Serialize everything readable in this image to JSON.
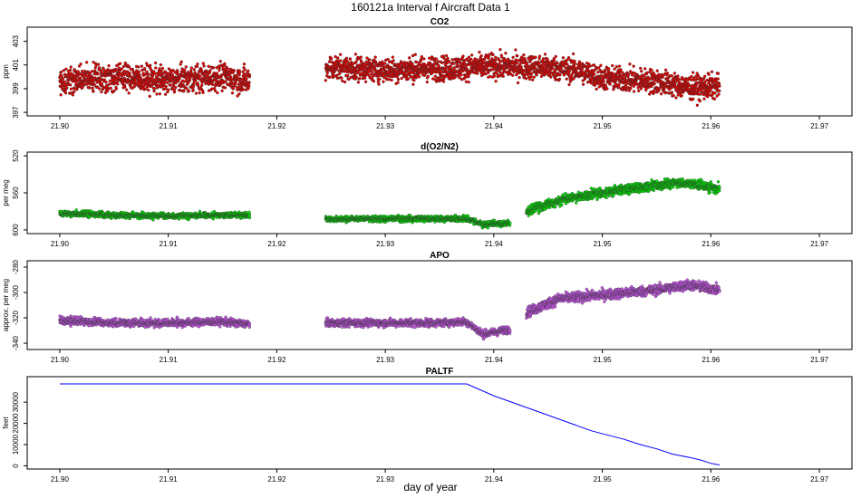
{
  "figure": {
    "title": "160121a   Interval f Aircraft Data 1",
    "xlabel": "day of year"
  },
  "chart_data": [
    {
      "type": "scatter",
      "title": "CO2",
      "ylabel": "ppm",
      "xlim": [
        21.897,
        21.973
      ],
      "ylim": [
        396.7,
        404.2
      ],
      "yticks": [
        397,
        399,
        401,
        403
      ],
      "xticks": [
        21.9,
        21.91,
        21.92,
        21.93,
        21.94,
        21.95,
        21.96,
        21.97
      ],
      "xtick_labels": [
        "21.90",
        "21.91",
        "21.92",
        "21.93",
        "21.94",
        "21.95",
        "21.96",
        "21.97"
      ],
      "color": "#e00000",
      "segments": [
        {
          "x_start": 21.9,
          "x_end": 21.9175,
          "mean_points": [
            [
              21.9,
              399.6
            ],
            [
              21.905,
              400.0
            ],
            [
              21.91,
              399.7
            ],
            [
              21.915,
              400.0
            ],
            [
              21.9175,
              399.6
            ]
          ],
          "noise": 1.1
        },
        {
          "x_start": 21.9245,
          "x_end": 21.9608,
          "mean_points": [
            [
              21.9245,
              400.8
            ],
            [
              21.93,
              400.6
            ],
            [
              21.935,
              400.7
            ],
            [
              21.94,
              400.9
            ],
            [
              21.945,
              400.8
            ],
            [
              21.948,
              400.5
            ],
            [
              21.95,
              399.9
            ],
            [
              21.955,
              399.6
            ],
            [
              21.958,
              399.1
            ],
            [
              21.9608,
              399.2
            ]
          ],
          "noise": 1.0
        }
      ]
    },
    {
      "type": "scatter",
      "title": "d(O2/N2)",
      "ylabel": "per meg",
      "xlim": [
        21.897,
        21.973
      ],
      "ylim": [
        604,
        516
      ],
      "yticks": [
        520,
        560,
        600
      ],
      "xticks": [
        21.9,
        21.91,
        21.92,
        21.93,
        21.94,
        21.95,
        21.96,
        21.97
      ],
      "xtick_labels": [
        "21.90",
        "21.91",
        "21.92",
        "21.93",
        "21.94",
        "21.95",
        "21.96",
        "21.97"
      ],
      "color": "#00e000",
      "segments": [
        {
          "x_start": 21.9,
          "x_end": 21.9175,
          "mean_points": [
            [
              21.9,
              582
            ],
            [
              21.905,
              584
            ],
            [
              21.91,
              585
            ],
            [
              21.915,
              584
            ],
            [
              21.9175,
              584
            ]
          ],
          "noise": 3.0
        },
        {
          "x_start": 21.9245,
          "x_end": 21.9415,
          "mean_points": [
            [
              21.9245,
              588
            ],
            [
              21.93,
              588
            ],
            [
              21.935,
              588
            ],
            [
              21.9375,
              588
            ],
            [
              21.939,
              594
            ],
            [
              21.9415,
              593
            ]
          ],
          "noise": 3.0
        },
        {
          "x_start": 21.943,
          "x_end": 21.9608,
          "mean_points": [
            [
              21.943,
              580
            ],
            [
              21.945,
              573
            ],
            [
              21.947,
              565
            ],
            [
              21.95,
              560
            ],
            [
              21.953,
              555
            ],
            [
              21.957,
              549
            ],
            [
              21.9608,
              555
            ]
          ],
          "noise": 5.0
        }
      ]
    },
    {
      "type": "scatter",
      "title": "APO",
      "ylabel": "approx. per meg",
      "xlim": [
        21.897,
        21.973
      ],
      "ylim": [
        -345,
        -275
      ],
      "yticks": [
        -340,
        -320,
        -300,
        -280
      ],
      "xticks": [
        21.9,
        21.91,
        21.92,
        21.93,
        21.94,
        21.95,
        21.96,
        21.97
      ],
      "xtick_labels": [
        "21.90",
        "21.91",
        "21.92",
        "21.93",
        "21.94",
        "21.95",
        "21.96",
        "21.97"
      ],
      "color": "#cc55ee",
      "segments": [
        {
          "x_start": 21.9,
          "x_end": 21.9175,
          "mean_points": [
            [
              21.9,
              -322
            ],
            [
              21.905,
              -324
            ],
            [
              21.91,
              -324
            ],
            [
              21.915,
              -323
            ],
            [
              21.9175,
              -325
            ]
          ],
          "noise": 3.0
        },
        {
          "x_start": 21.9245,
          "x_end": 21.9415,
          "mean_points": [
            [
              21.9245,
              -324
            ],
            [
              21.93,
              -324
            ],
            [
              21.935,
              -324
            ],
            [
              21.9375,
              -323
            ],
            [
              21.939,
              -333
            ],
            [
              21.9415,
              -329
            ]
          ],
          "noise": 3.0
        },
        {
          "x_start": 21.943,
          "x_end": 21.9608,
          "mean_points": [
            [
              21.943,
              -316
            ],
            [
              21.946,
              -305
            ],
            [
              21.95,
              -302
            ],
            [
              21.955,
              -298
            ],
            [
              21.958,
              -294
            ],
            [
              21.9608,
              -298
            ]
          ],
          "noise": 4.0
        }
      ]
    },
    {
      "type": "line",
      "title": "PALTF",
      "ylabel": "feet",
      "xlim": [
        21.897,
        21.973
      ],
      "ylim": [
        -1500,
        42000
      ],
      "yticks": [
        0,
        10000,
        20000,
        30000
      ],
      "xticks": [
        21.9,
        21.91,
        21.92,
        21.93,
        21.94,
        21.95,
        21.96,
        21.97
      ],
      "xtick_labels": [
        "21.90",
        "21.91",
        "21.92",
        "21.93",
        "21.94",
        "21.95",
        "21.96",
        "21.97"
      ],
      "color": "#0000ff",
      "x": [
        21.9,
        21.91,
        21.92,
        21.93,
        21.9375,
        21.94,
        21.943,
        21.946,
        21.949,
        21.952,
        21.9535,
        21.955,
        21.9565,
        21.958,
        21.959,
        21.96,
        21.9608
      ],
      "y": [
        38600,
        38600,
        38600,
        38600,
        38600,
        33000,
        27500,
        22000,
        16500,
        12500,
        10000,
        8000,
        5500,
        4000,
        2800,
        1200,
        400
      ]
    }
  ]
}
